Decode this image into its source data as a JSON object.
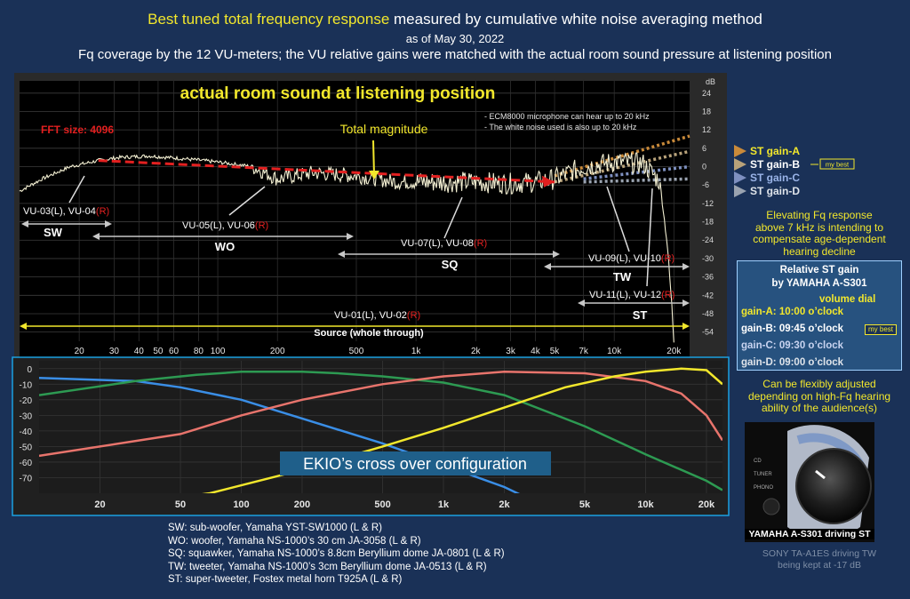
{
  "header": {
    "title_highlight": "Best tuned total frequency response",
    "title_rest": " measured by cumulative  white noise averaging method",
    "date": "as of May 30, 2022",
    "subtitle": "Fq coverage by the 12 VU-meters; the VU relative gains were matched with the actual room sound pressure at listening position"
  },
  "chart_data": [
    {
      "type": "line",
      "title": "actual room sound at listening position",
      "fft_label": "FFT size: 4096",
      "total_label": "Total magnitude",
      "notes": [
        "- ECM8000 microphone can hear up to 20 kHz",
        "- The white noise used is also up to 20 kHz"
      ],
      "x_scale": "log",
      "xlim": [
        10,
        24000
      ],
      "ylim": [
        -57,
        28
      ],
      "y_unit": "dB",
      "y_ticks": [
        24,
        18,
        12,
        6,
        0,
        -6,
        -12,
        -18,
        -24,
        -30,
        -36,
        -42,
        -48,
        -54
      ],
      "x_ticks": [
        {
          "f": 20,
          "label": "20"
        },
        {
          "f": 30,
          "label": "30"
        },
        {
          "f": 40,
          "label": "40"
        },
        {
          "f": 50,
          "label": "50"
        },
        {
          "f": 60,
          "label": "60"
        },
        {
          "f": 80,
          "label": "80"
        },
        {
          "f": 100,
          "label": "100"
        },
        {
          "f": 200,
          "label": "200"
        },
        {
          "f": 500,
          "label": "500"
        },
        {
          "f": 1000,
          "label": "1k"
        },
        {
          "f": 2000,
          "label": "2k"
        },
        {
          "f": 3000,
          "label": "3k"
        },
        {
          "f": 4000,
          "label": "4k"
        },
        {
          "f": 5000,
          "label": "5k"
        },
        {
          "f": 7000,
          "label": "7k"
        },
        {
          "f": 10000,
          "label": "10k"
        },
        {
          "f": 20000,
          "label": "20k"
        }
      ],
      "measured_curve": [
        [
          10,
          -8
        ],
        [
          13,
          -4
        ],
        [
          18,
          0
        ],
        [
          25,
          2
        ],
        [
          32,
          3
        ],
        [
          45,
          3.5
        ],
        [
          70,
          2.5
        ],
        [
          100,
          1.5
        ],
        [
          150,
          0
        ],
        [
          200,
          -4
        ],
        [
          300,
          -2
        ],
        [
          500,
          -3
        ],
        [
          800,
          -5
        ],
        [
          1000,
          -5
        ],
        [
          2000,
          -5
        ],
        [
          3000,
          -5.5
        ],
        [
          4000,
          -5
        ],
        [
          5000,
          -4
        ],
        [
          7000,
          0
        ],
        [
          10000,
          1.5
        ],
        [
          14000,
          1
        ],
        [
          17000,
          -5
        ],
        [
          18500,
          -25
        ],
        [
          19500,
          -45
        ],
        [
          20000,
          -57
        ]
      ],
      "trend_line": [
        [
          25,
          2
        ],
        [
          5000,
          -5
        ]
      ],
      "gain_lines": [
        {
          "name": "ST gain-A",
          "start": [
            5000,
            -3
          ],
          "end": [
            24000,
            10
          ],
          "color": "#c98a3a"
        },
        {
          "name": "ST gain-B",
          "start": [
            5000,
            -5
          ],
          "end": [
            24000,
            5
          ],
          "color": "#b8a27a"
        },
        {
          "name": "ST gain-C",
          "start": [
            7000,
            -4
          ],
          "end": [
            24000,
            0
          ],
          "color": "#7e90c0"
        },
        {
          "name": "ST gain-D",
          "start": [
            7000,
            -5
          ],
          "end": [
            24000,
            -4
          ],
          "color": "#9aa3b0"
        }
      ],
      "gain_labels": {
        "best_tag": "my best"
      },
      "vu_ranges": [
        {
          "label": "VU-03(L), VU-04",
          "r": "(R)",
          "band": "SW",
          "from": 10,
          "to": 70
        },
        {
          "label": "VU-05(L), VU-06",
          "r": "(R)",
          "band": "WO",
          "from": 40,
          "to": 700
        },
        {
          "label": "VU-07(L), VU-08",
          "r": "(R)",
          "band": "SQ",
          "from": 500,
          "to": 4000
        },
        {
          "label": "VU-09(L), VU-10",
          "r": "(R)",
          "band": "TW",
          "from": 4000,
          "to": 24000
        },
        {
          "label": "VU-11(L), VU-12",
          "r": "(R)",
          "band": "ST",
          "from": 7000,
          "to": 24000
        },
        {
          "label": "VU-01(L), VU-02",
          "r": "(R)",
          "band": "Source (whole through)",
          "from": 10,
          "to": 24000
        }
      ]
    },
    {
      "type": "line",
      "title": "EKIO’s cross over configuration",
      "x_scale": "log",
      "xlim": [
        10,
        24000
      ],
      "ylim": [
        -80,
        5
      ],
      "y_ticks": [
        0,
        -10,
        -20,
        -30,
        -40,
        -50,
        -60,
        -70
      ],
      "x_ticks": [
        {
          "f": 20,
          "label": "20"
        },
        {
          "f": 50,
          "label": "50"
        },
        {
          "f": 100,
          "label": "100"
        },
        {
          "f": 200,
          "label": "200"
        },
        {
          "f": 500,
          "label": "500"
        },
        {
          "f": 1000,
          "label": "1k"
        },
        {
          "f": 2000,
          "label": "2k"
        },
        {
          "f": 5000,
          "label": "5k"
        },
        {
          "f": 10000,
          "label": "10k"
        },
        {
          "f": 20000,
          "label": "20k"
        }
      ],
      "series": [
        {
          "name": "SW",
          "color": "#3a8ee6",
          "points": [
            [
              10,
              -6
            ],
            [
              30,
              -8
            ],
            [
              50,
              -12
            ],
            [
              100,
              -20
            ],
            [
              200,
              -32
            ],
            [
              500,
              -48
            ],
            [
              1000,
              -62
            ],
            [
              2000,
              -76
            ],
            [
              2500,
              -82
            ]
          ]
        },
        {
          "name": "WO",
          "color": "#2d9a52",
          "points": [
            [
              10,
              -17
            ],
            [
              30,
              -8
            ],
            [
              60,
              -4
            ],
            [
              100,
              -2
            ],
            [
              200,
              -2
            ],
            [
              300,
              -3
            ],
            [
              500,
              -5
            ],
            [
              1000,
              -9
            ],
            [
              2000,
              -17
            ],
            [
              5000,
              -37
            ],
            [
              10000,
              -55
            ],
            [
              20000,
              -72
            ],
            [
              24000,
              -78
            ]
          ]
        },
        {
          "name": "SQ",
          "color": "#e8746c",
          "points": [
            [
              10,
              -56
            ],
            [
              50,
              -42
            ],
            [
              100,
              -30
            ],
            [
              200,
              -20
            ],
            [
              500,
              -10
            ],
            [
              1000,
              -5
            ],
            [
              2000,
              -2
            ],
            [
              5000,
              -3
            ],
            [
              10000,
              -8
            ],
            [
              15000,
              -16
            ],
            [
              20000,
              -30
            ],
            [
              24000,
              -46
            ]
          ]
        },
        {
          "name": "TW/ST",
          "color": "#f2e72c",
          "points": [
            [
              10,
              -95
            ],
            [
              70,
              -80
            ],
            [
              200,
              -65
            ],
            [
              500,
              -50
            ],
            [
              1000,
              -38
            ],
            [
              2000,
              -25
            ],
            [
              4000,
              -12
            ],
            [
              7000,
              -5
            ],
            [
              10000,
              -2
            ],
            [
              15000,
              0
            ],
            [
              20000,
              -1
            ],
            [
              24000,
              -10
            ]
          ]
        }
      ]
    }
  ],
  "side": {
    "elevating_note": [
      "Elevating Fq response",
      "above 7 kHz is intending to",
      "compensate age-dependent",
      "hearing decline"
    ],
    "box_title": [
      "Relative ST gain",
      "by YAMAHA A-S301"
    ],
    "volume_label": "volume dial",
    "gains": [
      {
        "name": "gain-A:",
        "value": "10:00  o’clock",
        "color": "#f2e72c"
      },
      {
        "name": "gain-B:",
        "value": "09:45  o’clock",
        "color": "#ffffff"
      },
      {
        "name": "gain-C:",
        "value": "09:30  o’clock",
        "color": "#c8d3f0"
      },
      {
        "name": "gain-D:",
        "value": "09:00  o’clock",
        "color": "#dfe4ea"
      }
    ],
    "best_tag": "my best",
    "adjust_note": [
      "Can be flexibly adjusted",
      "depending on high-Fq hearing",
      "ability of the audience(s)"
    ],
    "knob_caption": "YAMAHA  A-S301 driving ST",
    "knob_labels": [
      "CD",
      "TUNER",
      "PHONO"
    ],
    "footer": [
      "SONY  TA-A1ES  driving TW",
      "being   kept at -17 dB"
    ]
  },
  "legend": [
    "SW: sub-woofer, Yamaha YST-SW1000 (L & R)",
    "WO: woofer, Yamaha NS-1000’s 30 cm JA-3058 (L & R)",
    "SQ:  squawker, Yamaha NS-1000’s 8.8cm Beryllium dome JA-0801 (L & R)",
    "TW: tweeter, Yamaha NS-1000’s 3cm Beryllium dome JA-0513 (L & R)",
    "ST:  super-tweeter, Fostex metal horn T925A  (L & R)"
  ]
}
